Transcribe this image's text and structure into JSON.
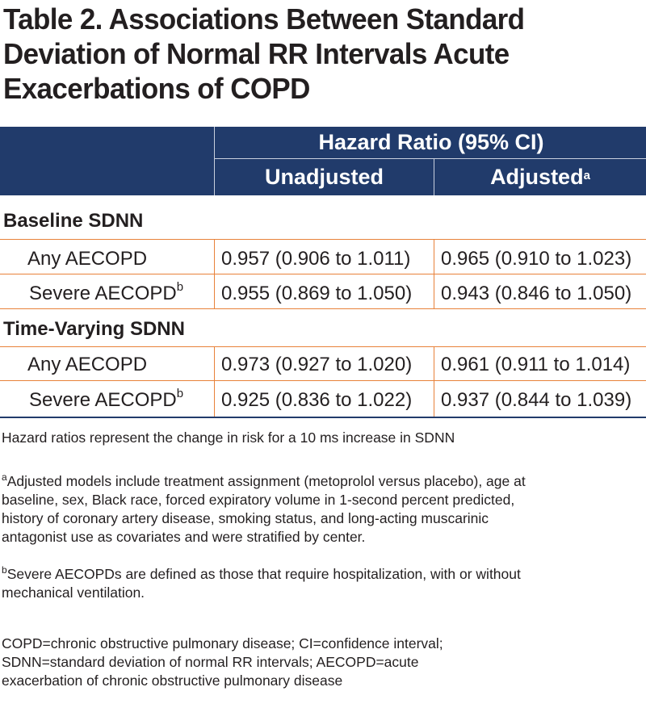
{
  "title": {
    "line1": "Table 2. Associations Between Standard",
    "line2": "Deviation of Normal RR Intervals Acute",
    "line3": "Exacerbations of COPD"
  },
  "header": {
    "group": "Hazard Ratio (95% CI)",
    "col1": "Unadjusted",
    "col2": "Adjusted",
    "col2_sup": "a"
  },
  "sections": [
    {
      "label": "Baseline SDNN",
      "rows": [
        {
          "label": "Any AECOPD",
          "sup": "",
          "unadjusted": "0.957 (0.906 to 1.011)",
          "adjusted": "0.965 (0.910 to 1.023)"
        },
        {
          "label": "Severe AECOPD",
          "sup": "b",
          "unadjusted": "0.955 (0.869 to 1.050)",
          "adjusted": "0.943 (0.846 to 1.050)"
        }
      ]
    },
    {
      "label": "Time-Varying SDNN",
      "rows": [
        {
          "label": "Any AECOPD",
          "sup": "",
          "unadjusted": "0.973 (0.927 to 1.020)",
          "adjusted": "0.961 (0.911 to 1.014)"
        },
        {
          "label": "Severe AECOPD",
          "sup": "b",
          "unadjusted": "0.925 (0.836 to 1.022)",
          "adjusted": "0.937 (0.844 to 1.039)"
        }
      ]
    }
  ],
  "notes": {
    "hazard": "Hazard ratios represent the change in risk for a 10 ms increase in SDNN",
    "a_mark": "a",
    "a_line1": "Adjusted models include treatment assignment (metoprolol versus placebo), age at",
    "a_line2": "baseline, sex, Black race, forced expiratory volume in 1-second percent predicted,",
    "a_line3": "history of coronary artery disease, smoking status, and long-acting muscarinic",
    "a_line4": "antagonist use as covariates and were stratified by center.",
    "b_mark": "b",
    "b_line1": "Severe AECOPDs are defined as those that require hospitalization, with or without",
    "b_line2": "mechanical ventilation.",
    "abbr_line1": "COPD=chronic obstructive pulmonary disease; CI=confidence interval;",
    "abbr_line2": "SDNN=standard deviation of normal RR intervals; AECOPD=acute",
    "abbr_line3": "exacerbation of chronic obstructive pulmonary disease"
  }
}
